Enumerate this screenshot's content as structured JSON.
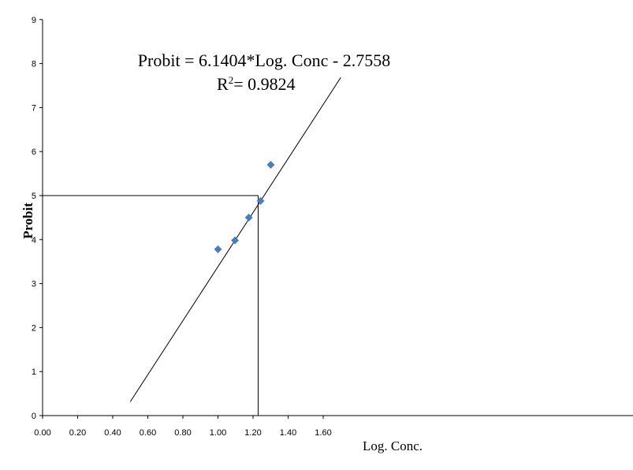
{
  "chart_data": {
    "type": "scatter",
    "title": "",
    "xlabel": "Log. Conc.",
    "ylabel": "Probit",
    "xlim": [
      0,
      1.7
    ],
    "ylim": [
      0,
      9
    ],
    "x_ticks": [
      "0.00",
      "0.20",
      "0.40",
      "0.60",
      "0.80",
      "1.00",
      "1.20",
      "1.40",
      "1.60"
    ],
    "y_ticks": [
      "0",
      "1",
      "2",
      "3",
      "4",
      "5",
      "6",
      "7",
      "8",
      "9"
    ],
    "points": [
      {
        "x": 1.0,
        "y": 3.78
      },
      {
        "x": 1.097,
        "y": 3.98
      },
      {
        "x": 1.176,
        "y": 4.5
      },
      {
        "x": 1.243,
        "y": 4.88
      },
      {
        "x": 1.301,
        "y": 5.7
      }
    ],
    "point_color": "#4a7ebb",
    "trendline": {
      "slope": 6.1404,
      "intercept": -2.7558,
      "x_start": 0.5,
      "x_end": 1.7
    },
    "reference": {
      "x": 1.2292,
      "y": 5
    },
    "equation": "Probit = 6.1404*Log. Conc - 2.7558",
    "r2_label": "R",
    "r2_sup": "2",
    "r2_value": "= 0.9824",
    "grid": false
  }
}
